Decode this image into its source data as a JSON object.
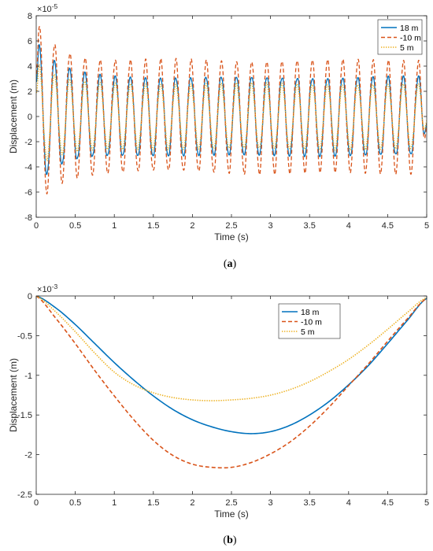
{
  "colors": {
    "series1": "#0072BD",
    "series2": "#D95319",
    "series3": "#EDB120",
    "axis": "#262626"
  },
  "chart_data": [
    {
      "id": "a",
      "type": "line",
      "caption": "a",
      "xlabel": "Time (s)",
      "ylabel": "Displacement (m)",
      "y_exponent_base": "10",
      "y_exponent_power": "-5",
      "xlim": [
        0,
        5
      ],
      "ylim": [
        -8,
        8
      ],
      "xticks": [
        0,
        0.5,
        1,
        1.5,
        2,
        2.5,
        3,
        3.5,
        4,
        4.5,
        5
      ],
      "xtick_labels": [
        "0",
        "0.5",
        "1",
        "1.5",
        "2",
        "2.5",
        "3",
        "3.5",
        "4",
        "4.5",
        "5"
      ],
      "yticks": [
        -8,
        -6,
        -4,
        -2,
        0,
        2,
        4,
        6,
        8
      ],
      "ytick_labels": [
        "-8",
        "-6",
        "-4",
        "-2",
        "0",
        "2",
        "4",
        "6",
        "8"
      ],
      "legend_position": "top-right",
      "grid": false,
      "signal": {
        "frequency_hz": 5.15,
        "initial_peak_time_s": 0.04
      },
      "series": [
        {
          "name": "18 m",
          "style": "solid",
          "color": "#0072BD",
          "initial_peak": 6.2,
          "first_trough": -4.5,
          "steady_amplitude": 3.2,
          "end_value": -0.5
        },
        {
          "name": "-10 m",
          "style": "dashed",
          "color": "#D95319",
          "initial_peak": 7.7,
          "first_trough": -6.1,
          "steady_amplitude": 4.4,
          "end_value": -0.6
        },
        {
          "name": "5 m",
          "style": "dotted",
          "color": "#EDB120",
          "initial_peak": 4.3,
          "first_trough": -3.2,
          "steady_amplitude": 2.5,
          "end_value": -0.3
        }
      ]
    },
    {
      "id": "b",
      "type": "line",
      "caption": "b",
      "xlabel": "Time (s)",
      "ylabel": "Displacement (m)",
      "y_exponent_base": "10",
      "y_exponent_power": "-3",
      "xlim": [
        0,
        5
      ],
      "ylim": [
        -2.5,
        0
      ],
      "xticks": [
        0,
        0.5,
        1,
        1.5,
        2,
        2.5,
        3,
        3.5,
        4,
        4.5,
        5
      ],
      "xtick_labels": [
        "0",
        "0.5",
        "1",
        "1.5",
        "2",
        "2.5",
        "3",
        "3.5",
        "4",
        "4.5",
        "5"
      ],
      "yticks": [
        -2.5,
        -2,
        -1.5,
        -1,
        -0.5,
        0
      ],
      "ytick_labels": [
        "-2.5",
        "-2",
        "-1.5",
        "-1",
        "-0.5",
        "0"
      ],
      "legend_position": "top-right",
      "grid": false,
      "x": [
        0,
        0.25,
        0.5,
        0.75,
        1,
        1.25,
        1.5,
        1.75,
        2,
        2.25,
        2.5,
        2.75,
        3,
        3.25,
        3.5,
        3.75,
        4,
        4.25,
        4.5,
        4.75,
        5
      ],
      "series": [
        {
          "name": "18 m",
          "style": "solid",
          "color": "#0072BD",
          "values": [
            0,
            -0.15,
            -0.36,
            -0.6,
            -0.84,
            -1.06,
            -1.26,
            -1.43,
            -1.56,
            -1.65,
            -1.71,
            -1.735,
            -1.71,
            -1.63,
            -1.5,
            -1.33,
            -1.12,
            -0.88,
            -0.6,
            -0.31,
            -0.03
          ]
        },
        {
          "name": "-10 m",
          "style": "dashed",
          "color": "#D95319",
          "values": [
            0,
            -0.28,
            -0.6,
            -0.94,
            -1.26,
            -1.56,
            -1.82,
            -2.01,
            -2.12,
            -2.16,
            -2.16,
            -2.1,
            -1.99,
            -1.84,
            -1.64,
            -1.4,
            -1.13,
            -0.86,
            -0.57,
            -0.29,
            -0.03
          ]
        },
        {
          "name": "5 m",
          "style": "dotted",
          "color": "#EDB120",
          "values": [
            0,
            -0.2,
            -0.45,
            -0.72,
            -0.96,
            -1.12,
            -1.22,
            -1.28,
            -1.31,
            -1.32,
            -1.31,
            -1.29,
            -1.25,
            -1.18,
            -1.08,
            -0.95,
            -0.8,
            -0.62,
            -0.42,
            -0.21,
            -0.02
          ]
        }
      ]
    }
  ]
}
